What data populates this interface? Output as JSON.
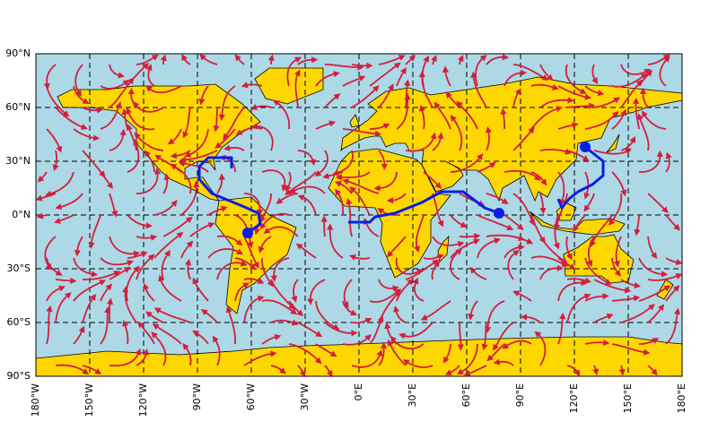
{
  "map": {
    "lon_range": [
      -180,
      180
    ],
    "lat_range": [
      -90,
      90
    ],
    "lon_ticks": [
      {
        "value": -180,
        "label": "180°W"
      },
      {
        "value": -150,
        "label": "150°W"
      },
      {
        "value": -120,
        "label": "120°W"
      },
      {
        "value": -90,
        "label": "90°W"
      },
      {
        "value": -60,
        "label": "60°W"
      },
      {
        "value": -30,
        "label": "30°W"
      },
      {
        "value": 0,
        "label": "0°E"
      },
      {
        "value": 30,
        "label": "30°E"
      },
      {
        "value": 60,
        "label": "60°E"
      },
      {
        "value": 90,
        "label": "90°E"
      },
      {
        "value": 120,
        "label": "120°E"
      },
      {
        "value": 150,
        "label": "150°E"
      },
      {
        "value": 180,
        "label": "180°E"
      }
    ],
    "lat_ticks": [
      {
        "value": 90,
        "label": "90°N"
      },
      {
        "value": 60,
        "label": "60°N"
      },
      {
        "value": 30,
        "label": "30°N"
      },
      {
        "value": 0,
        "label": "0°N"
      },
      {
        "value": -30,
        "label": "30°S"
      },
      {
        "value": -60,
        "label": "60°S"
      },
      {
        "value": -90,
        "label": "90°S"
      }
    ]
  }
}
